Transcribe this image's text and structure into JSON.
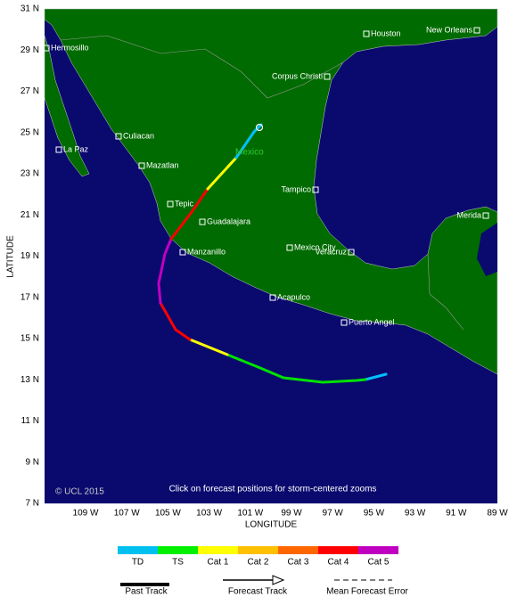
{
  "map": {
    "yticks": [
      "31 N",
      "29 N",
      "27 N",
      "25 N",
      "23 N",
      "21 N",
      "19 N",
      "17 N",
      "15 N",
      "13 N",
      "11 N",
      "9 N",
      "7 N"
    ],
    "xticks": [
      "109 W",
      "107 W",
      "105 W",
      "103 W",
      "101 W",
      "99 W",
      "97 W",
      "95 W",
      "93 W",
      "91 W",
      "89 W"
    ],
    "ylabel": "LATITUDE",
    "xlabel": "LONGITUDE",
    "cities": [
      "Hermosillo",
      "Houston",
      "New Orleans",
      "Corpus Christi",
      "Culiacan",
      "La Paz",
      "Mazatlan",
      "Tepic",
      "Guadalajara",
      "Manzanillo",
      "Tampico",
      "Mexico City",
      "Veracruz",
      "Acapulco",
      "Puerto Angel",
      "Merida"
    ],
    "storm_label": "Mexico",
    "copyright": "© UCL 2015",
    "note": "Click on forecast positions for storm-centered zooms"
  },
  "legend": {
    "categories": [
      "TD",
      "TS",
      "Cat 1",
      "Cat 2",
      "Cat 3",
      "Cat 4",
      "Cat 5"
    ],
    "past_track": "Past Track",
    "forecast_track": "Forecast Track",
    "mean_error": "Mean Forecast Error"
  }
}
